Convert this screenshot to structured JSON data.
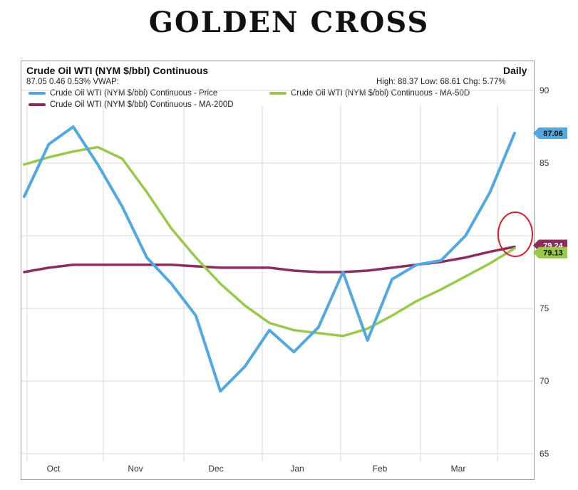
{
  "banner": "GOLDEN CROSS",
  "header": {
    "title": "Crude Oil WTI (NYM $/bbl) Continuous",
    "period": "Daily",
    "quote": "87.05 0.46 0.53% VWAP:",
    "stats": "High: 88.37 Low: 68.61 Chg: 5.77%"
  },
  "colors": {
    "price": "#52a8e0",
    "ma50": "#98c94a",
    "ma200": "#8b2d5e",
    "highlight": "#d9202a",
    "grid": "#d8d8d8"
  },
  "chart_data": {
    "type": "line",
    "title": "Crude Oil WTI (NYM $/bbl) Continuous",
    "ylim": [
      65,
      90
    ],
    "yticks": [
      "90",
      "85",
      "75",
      "70",
      "65"
    ],
    "xticks": [
      "Oct",
      "Nov",
      "Dec",
      "Jan",
      "Feb",
      "Mar"
    ],
    "x": [
      "Sep 25",
      "Oct 4",
      "Oct 13",
      "Oct 22",
      "Nov 1",
      "Nov 10",
      "Nov 19",
      "Nov 29",
      "Dec 8",
      "Dec 17",
      "Dec 27",
      "Jan 5",
      "Jan 14",
      "Jan 23",
      "Feb 2",
      "Feb 11",
      "Feb 20",
      "Mar 2",
      "Mar 11",
      "Mar 20",
      "Mar 30"
    ],
    "series": [
      {
        "name": "Crude Oil WTI (NYM $/bbl) Continuous - Price",
        "color": "#52a8e0",
        "values": [
          82.7,
          86.3,
          87.5,
          84.9,
          82.0,
          78.5,
          76.7,
          74.5,
          69.3,
          71.0,
          73.5,
          72.0,
          73.7,
          77.5,
          72.8,
          77.0,
          78.0,
          78.3,
          80.0,
          83.0,
          87.06
        ]
      },
      {
        "name": "Crude Oil WTI (NYM $/bbl) Continuous - MA-50D",
        "color": "#98c94a",
        "values": [
          84.9,
          85.4,
          85.8,
          86.1,
          85.3,
          83.0,
          80.5,
          78.5,
          76.7,
          75.2,
          74.0,
          73.5,
          73.3,
          73.1,
          73.6,
          74.5,
          75.5,
          76.3,
          77.2,
          78.1,
          79.13
        ]
      },
      {
        "name": "Crude Oil WTI (NYM $/bbl) Continuous - MA-200D",
        "color": "#8b2d5e",
        "values": [
          77.5,
          77.8,
          78.0,
          78.0,
          78.0,
          78.0,
          78.0,
          77.9,
          77.8,
          77.8,
          77.8,
          77.6,
          77.5,
          77.5,
          77.6,
          77.8,
          78.0,
          78.2,
          78.5,
          78.9,
          79.24
        ]
      }
    ],
    "last_value_labels": [
      {
        "series": "price",
        "label": "87.06"
      },
      {
        "series": "ma200",
        "label": "79.24"
      },
      {
        "series": "ma50",
        "label": "79.13"
      }
    ],
    "grid": true,
    "legend_placement": "top"
  }
}
